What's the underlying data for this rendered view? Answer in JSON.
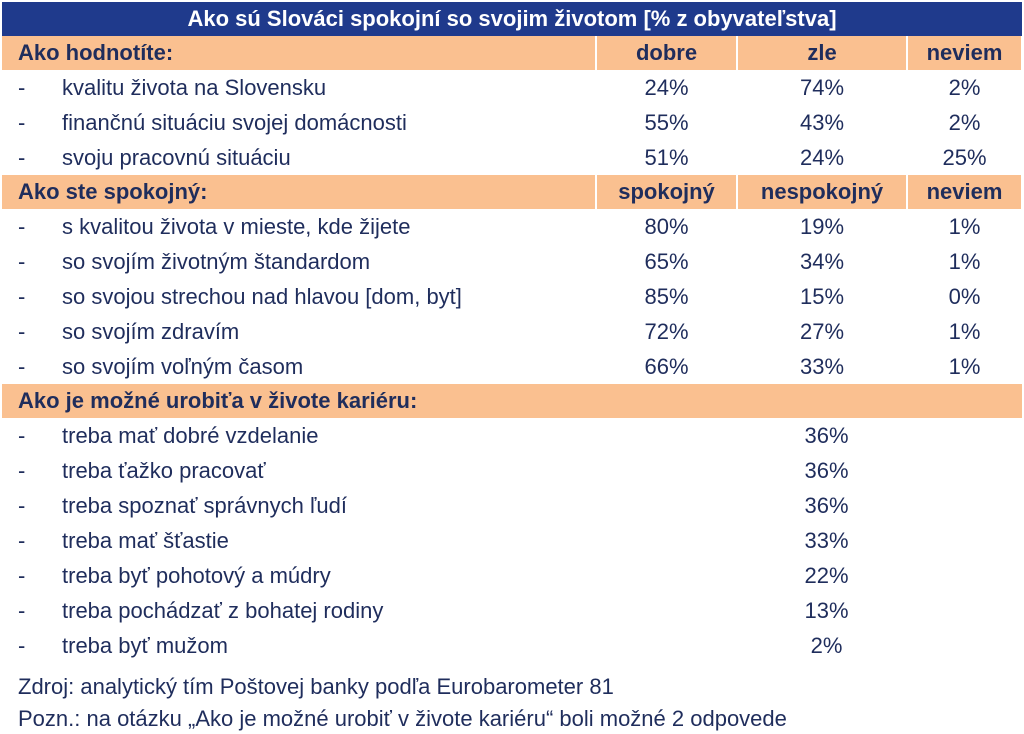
{
  "title": "Ako sú Slováci spokojní so svojim životom [% z  obyvateľstva]",
  "section1": {
    "heading": "Ako hodnotíte:",
    "columns": [
      "dobre",
      "zle",
      "neviem"
    ],
    "rows": [
      {
        "label": "kvalitu života na Slovensku",
        "values": [
          "24%",
          "74%",
          "2%"
        ]
      },
      {
        "label": "finančnú situáciu svojej domácnosti",
        "values": [
          "55%",
          "43%",
          "2%"
        ]
      },
      {
        "label": "svoju pracovnú situáciu",
        "values": [
          "51%",
          "24%",
          "25%"
        ]
      }
    ]
  },
  "section2": {
    "heading": "Ako ste spokojný:",
    "columns": [
      "spokojný",
      "nespokojný",
      "neviem"
    ],
    "rows": [
      {
        "label": "s kvalitou života v mieste, kde žijete",
        "values": [
          "80%",
          "19%",
          "1%"
        ]
      },
      {
        "label": "so svojím životným štandardom",
        "values": [
          "65%",
          "34%",
          "1%"
        ]
      },
      {
        "label": "so svojou strechou nad hlavou [dom, byt]",
        "values": [
          "85%",
          "15%",
          "0%"
        ]
      },
      {
        "label": "so svojím zdravím",
        "values": [
          "72%",
          "27%",
          "1%"
        ]
      },
      {
        "label": "so svojím voľným časom",
        "values": [
          "66%",
          "33%",
          "1%"
        ]
      }
    ]
  },
  "section3": {
    "heading": "Ako je možné urobiťa v živote kariéru:",
    "rows": [
      {
        "label": "treba mať dobré vzdelanie",
        "value": "36%"
      },
      {
        "label": "treba ťažko pracovať",
        "value": "36%"
      },
      {
        "label": "treba spoznať správnych ľudí",
        "value": "36%"
      },
      {
        "label": "treba mať šťastie",
        "value": "33%"
      },
      {
        "label": "treba byť pohotový a múdry",
        "value": "22%"
      },
      {
        "label": "treba pochádzať z bohatej rodiny",
        "value": "13%"
      },
      {
        "label": "treba byť mužom",
        "value": "2%"
      }
    ]
  },
  "dash": "-",
  "footer": {
    "source": "Zdroj: analytický tím Poštovej banky podľa Eurobarometer 81",
    "note": "Pozn.: na otázku „Ako je  možné urobiť v živote kariéru“ boli možné 2 odpovede"
  }
}
